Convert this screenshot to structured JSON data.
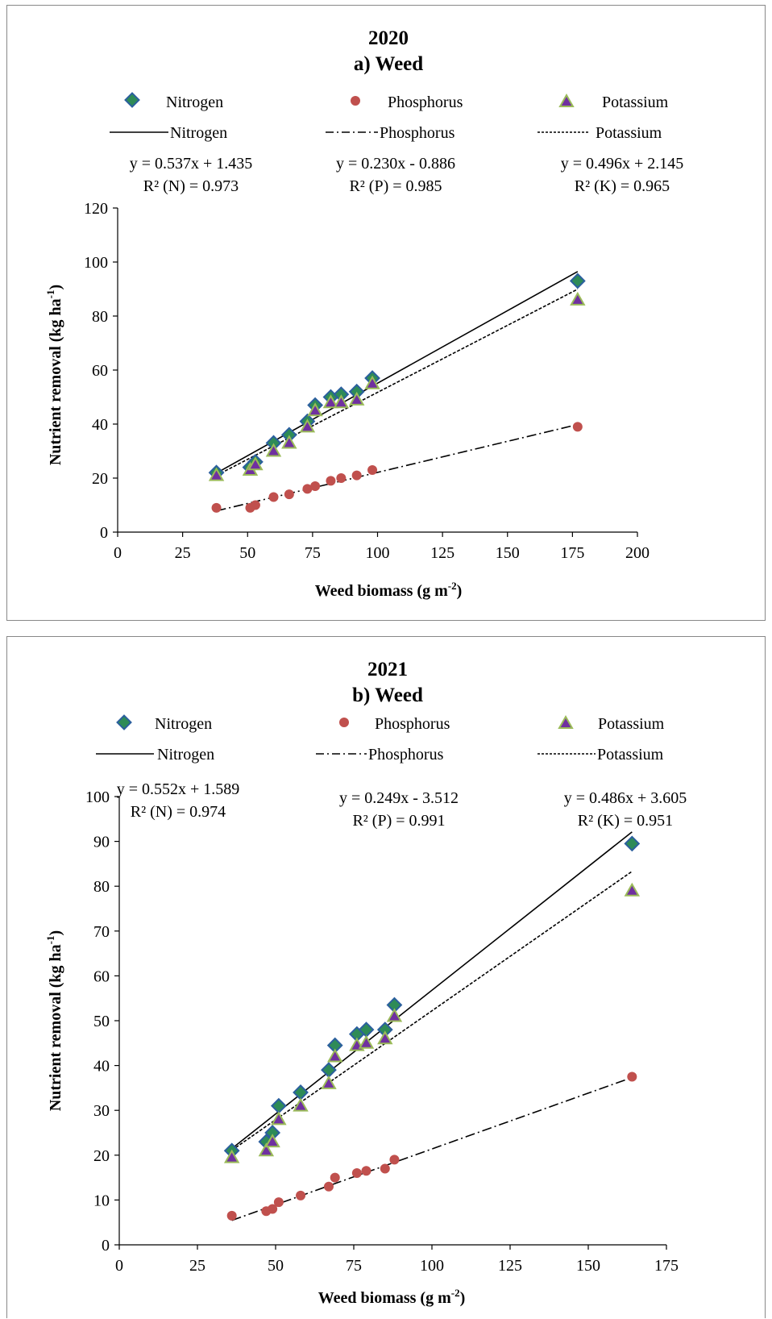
{
  "charts": [
    {
      "year": "2020",
      "subtitle": "a) Weed",
      "xlabel": "Weed biomass (g m",
      "xlabel_sup": "-2",
      "xlabel_end": ")",
      "ylabel": "Nutrient removal (kg ha",
      "ylabel_sup": "-1",
      "ylabel_end": ")",
      "legend_markers": [
        "Nitrogen",
        "Phosphorus",
        "Potassium"
      ],
      "legend_lines": [
        "Nitrogen",
        "Phosphorus",
        "Potassium"
      ],
      "equations": [
        {
          "eq": "y = 0.537x + 1.435",
          "r2": "R² (N) = 0.973"
        },
        {
          "eq": "y = 0.230x - 0.886",
          "r2": "R²  (P) = 0.985"
        },
        {
          "eq": "y = 0.496x + 2.145",
          "r2": "R²  (K) = 0.965"
        }
      ]
    },
    {
      "year": "2021",
      "subtitle": "b) Weed",
      "xlabel": "Weed biomass (g m",
      "xlabel_sup": "-2",
      "xlabel_end": ")",
      "ylabel": "Nutrient removal (kg ha",
      "ylabel_sup": "-1",
      "ylabel_end": ")",
      "legend_markers": [
        "Nitrogen",
        "Phosphorus",
        "Potassium"
      ],
      "legend_lines": [
        "Nitrogen",
        "Phosphorus",
        "Potassium"
      ],
      "equations": [
        {
          "eq": "y = 0.552x + 1.589",
          "r2": "R²  (N) = 0.974"
        },
        {
          "eq": "y = 0.249x - 3.512",
          "r2": "R²  (P) = 0.991"
        },
        {
          "eq": "y = 0.486x + 3.605",
          "r2": "R² (K) = 0.951"
        }
      ]
    }
  ],
  "colors": {
    "nitrogen_fill": "#2e8b57",
    "nitrogen_stroke": "#2b5f9e",
    "phosphorus": "#c0504d",
    "potassium_fill": "#7030a0",
    "potassium_stroke": "#9bbb59"
  },
  "chart_data": [
    {
      "type": "scatter",
      "title": "2020",
      "subtitle": "a) Weed",
      "xlabel": "Weed biomass (g m-2)",
      "ylabel": "Nutrient removal (kg ha-1)",
      "xlim": [
        0,
        200
      ],
      "ylim": [
        0,
        120
      ],
      "xticks": [
        0,
        25,
        50,
        75,
        100,
        125,
        150,
        175,
        200
      ],
      "yticks": [
        0,
        20,
        40,
        60,
        80,
        100,
        120
      ],
      "grid": false,
      "x": [
        38,
        51,
        53,
        60,
        66,
        73,
        76,
        82,
        86,
        92,
        98,
        177
      ],
      "series": [
        {
          "name": "Nitrogen",
          "marker": "diamond",
          "values": [
            22,
            24,
            26,
            33,
            36,
            41,
            47,
            50,
            51,
            52,
            57,
            93
          ]
        },
        {
          "name": "Phosphorus",
          "marker": "circle",
          "values": [
            9,
            9,
            10,
            13,
            14,
            16,
            17,
            19,
            20,
            21,
            23,
            39
          ]
        },
        {
          "name": "Potassium",
          "marker": "triangle",
          "values": [
            21,
            23,
            25,
            30,
            33,
            39,
            45,
            48,
            48,
            49,
            55,
            86
          ]
        }
      ],
      "trendlines": [
        {
          "name": "Nitrogen",
          "style": "solid",
          "slope": 0.537,
          "intercept": 1.435,
          "x_range": [
            38,
            177
          ]
        },
        {
          "name": "Phosphorus",
          "style": "dash-dot",
          "slope": 0.23,
          "intercept": -0.886,
          "x_range": [
            38,
            177
          ]
        },
        {
          "name": "Potassium",
          "style": "dotted",
          "slope": 0.496,
          "intercept": 2.145,
          "x_range": [
            38,
            177
          ]
        }
      ]
    },
    {
      "type": "scatter",
      "title": "2021",
      "subtitle": "b) Weed",
      "xlabel": "Weed biomass (g m-2)",
      "ylabel": "Nutrient removal (kg ha-1)",
      "xlim": [
        0,
        175
      ],
      "ylim": [
        0,
        100
      ],
      "xticks": [
        0,
        25,
        50,
        75,
        100,
        125,
        150,
        175
      ],
      "yticks": [
        0,
        10,
        20,
        30,
        40,
        50,
        60,
        70,
        80,
        90,
        100
      ],
      "grid": false,
      "x": [
        36,
        47,
        49,
        51,
        58,
        67,
        69,
        76,
        79,
        85,
        88,
        164
      ],
      "series": [
        {
          "name": "Nitrogen",
          "marker": "diamond",
          "values": [
            21,
            23,
            25,
            31,
            34,
            39,
            44.5,
            47,
            48,
            48,
            53.5,
            89.5
          ]
        },
        {
          "name": "Phosphorus",
          "marker": "circle",
          "values": [
            6.5,
            7.5,
            8,
            9.5,
            11,
            13,
            15,
            16,
            16.5,
            17,
            19,
            37.5
          ]
        },
        {
          "name": "Potassium",
          "marker": "triangle",
          "values": [
            19.5,
            21,
            23,
            28,
            31,
            36,
            42,
            44.5,
            45,
            46,
            51,
            79
          ]
        }
      ],
      "trendlines": [
        {
          "name": "Nitrogen",
          "style": "solid",
          "slope": 0.552,
          "intercept": 1.589,
          "x_range": [
            36,
            164
          ]
        },
        {
          "name": "Phosphorus",
          "style": "dash-dot",
          "slope": 0.249,
          "intercept": -3.512,
          "x_range": [
            36,
            164
          ]
        },
        {
          "name": "Potassium",
          "style": "dotted",
          "slope": 0.486,
          "intercept": 3.605,
          "x_range": [
            36,
            164
          ]
        }
      ]
    }
  ]
}
